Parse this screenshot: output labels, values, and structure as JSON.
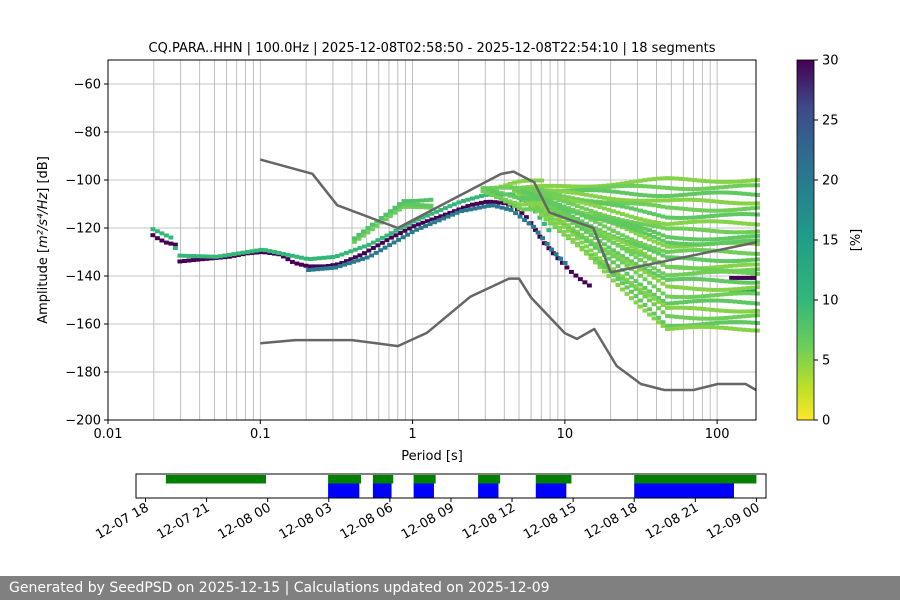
{
  "footer": {
    "generated": "Generated by SeedPSD on 2025-12-15",
    "separator": " | ",
    "updated": "Calculations updated on 2025-12-09"
  },
  "colors": {
    "green": "#008000",
    "blue": "#0000ff",
    "model": "#666666",
    "grid": "#b0b0b0",
    "footer_bg": "#808080"
  },
  "chart_data": [
    {
      "type": "heatmap",
      "title": "CQ.PARA..HHN | 100.0Hz | 2025-12-08T02:58:50 - 2025-12-08T22:54:10 | 18 segments",
      "xlabel": "Period [s]",
      "ylabel_prefix": "Amplitude [",
      "ylabel_math": "m²/s⁴/Hz",
      "ylabel_suffix": "] [dB]",
      "x_scale": "log",
      "xlim": [
        0.01,
        180
      ],
      "ylim": [
        -200,
        -50
      ],
      "x_ticks": [
        {
          "value": 0.01,
          "label": "0.01"
        },
        {
          "value": 0.1,
          "label": "0.1"
        },
        {
          "value": 1,
          "label": "1"
        },
        {
          "value": 10,
          "label": "10"
        },
        {
          "value": 100,
          "label": "100"
        }
      ],
      "y_ticks": [
        {
          "value": -60,
          "label": "−60"
        },
        {
          "value": -80,
          "label": "−80"
        },
        {
          "value": -100,
          "label": "−100"
        },
        {
          "value": -120,
          "label": "−120"
        },
        {
          "value": -140,
          "label": "−140"
        },
        {
          "value": -160,
          "label": "−160"
        },
        {
          "value": -180,
          "label": "−180"
        },
        {
          "value": -200,
          "label": "−200"
        }
      ],
      "grid": true,
      "colorbar": {
        "label": "[%]",
        "min": 0,
        "max": 30,
        "ticks": [
          {
            "value": 0,
            "label": "0"
          },
          {
            "value": 5,
            "label": "5"
          },
          {
            "value": 10,
            "label": "10"
          },
          {
            "value": 15,
            "label": "15"
          },
          {
            "value": 20,
            "label": "20"
          },
          {
            "value": 25,
            "label": "25"
          },
          {
            "value": 30,
            "label": "30"
          }
        ]
      },
      "high_noise_model": [
        [
          0.1,
          -91.5
        ],
        [
          0.22,
          -97.4
        ],
        [
          0.32,
          -110.5
        ],
        [
          0.8,
          -120
        ],
        [
          3.8,
          -97.5
        ],
        [
          4.6,
          -96.5
        ],
        [
          6.3,
          -101
        ],
        [
          7.9,
          -113.5
        ],
        [
          15.4,
          -120
        ],
        [
          20,
          -138.5
        ],
        [
          354.8,
          -126
        ]
      ],
      "low_noise_model": [
        [
          0.1,
          -168
        ],
        [
          0.17,
          -166.7
        ],
        [
          0.4,
          -166.7
        ],
        [
          0.8,
          -169.2
        ],
        [
          1.24,
          -163.7
        ],
        [
          2.4,
          -148.6
        ],
        [
          4.3,
          -141.1
        ],
        [
          5,
          -141.1
        ],
        [
          6,
          -149
        ],
        [
          10,
          -163.8
        ],
        [
          12,
          -166.2
        ],
        [
          15.6,
          -162.1
        ],
        [
          21.9,
          -177.5
        ],
        [
          31.6,
          -185
        ],
        [
          45,
          -187.5
        ],
        [
          70,
          -187.5
        ],
        [
          101,
          -185
        ],
        [
          154,
          -185
        ],
        [
          328,
          -187.5
        ]
      ],
      "psd_ridges": [
        {
          "percent": 30,
          "points": [
            [
              0.019,
              -123
            ],
            [
              0.02,
              -124
            ],
            [
              0.023,
              -126
            ],
            [
              0.027,
              -127
            ],
            [
              0.028,
              -134
            ],
            [
              0.04,
              -133
            ],
            [
              0.06,
              -132
            ],
            [
              0.08,
              -130.5
            ],
            [
              0.1,
              -130
            ],
            [
              0.13,
              -131
            ],
            [
              0.16,
              -134.5
            ],
            [
              0.2,
              -136
            ],
            [
              0.26,
              -136
            ],
            [
              0.32,
              -135
            ],
            [
              0.45,
              -131
            ],
            [
              0.7,
              -124
            ],
            [
              1.0,
              -119
            ],
            [
              1.5,
              -115
            ],
            [
              2.3,
              -110.5
            ],
            [
              3.0,
              -109
            ],
            [
              3.8,
              -109.5
            ],
            [
              4.5,
              -111
            ],
            [
              5.5,
              -116
            ],
            [
              7.0,
              -126
            ],
            [
              8.5,
              -132
            ],
            [
              10.5,
              -138
            ],
            [
              12,
              -141
            ],
            [
              14,
              -144
            ]
          ]
        },
        {
          "percent": 30,
          "points": [
            [
              120,
              -140.8
            ],
            [
              180,
              -140.8
            ]
          ]
        },
        {
          "percent": 20,
          "points": [
            [
              0.2,
              -137.5
            ],
            [
              0.3,
              -136.5
            ],
            [
              0.5,
              -132
            ],
            [
              1.0,
              -121
            ],
            [
              2.0,
              -113
            ],
            [
              3.2,
              -110.5
            ],
            [
              4.3,
              -112.5
            ],
            [
              6.0,
              -119.5
            ],
            [
              8.0,
              -129.5
            ],
            [
              10,
              -135.5
            ]
          ]
        },
        {
          "percent": 15,
          "points": [
            [
              120,
              -146
            ],
            [
              180,
              -146
            ]
          ]
        },
        {
          "percent": 10,
          "points": [
            [
              0.019,
              -120.5
            ],
            [
              0.025,
              -124
            ],
            [
              0.028,
              -131.5
            ],
            [
              0.05,
              -132
            ],
            [
              0.1,
              -129
            ],
            [
              0.2,
              -133
            ],
            [
              0.3,
              -132
            ],
            [
              0.5,
              -127
            ],
            [
              1.0,
              -117
            ],
            [
              2.0,
              -109
            ],
            [
              3.0,
              -106
            ],
            [
              4.5,
              -106
            ],
            [
              6.0,
              -112
            ],
            [
              8.0,
              -123
            ]
          ]
        }
      ],
      "psd_fans": [
        {
          "percent": 6,
          "from": [
            0.4,
            -125
          ],
          "to": [
            1.3,
            -113
          ],
          "levels": [
            -112,
            -110,
            -108
          ]
        },
        {
          "percent": 5,
          "from": [
            4.5,
            -104
          ],
          "to": [
            180,
            -104
          ],
          "levels": [
            -100,
            -103,
            -106,
            -109,
            -112,
            -115,
            -118,
            -121,
            -124,
            -127,
            -130,
            -133,
            -136,
            -139,
            -142,
            -145,
            -148,
            -151,
            -154,
            -157,
            -160,
            -162,
            -137,
            -126
          ]
        },
        {
          "percent": 5,
          "from": [
            2.8,
            -104
          ],
          "to": [
            7,
            -104
          ],
          "levels": [
            -101,
            -104,
            -107,
            -110,
            -113
          ]
        }
      ]
    },
    {
      "type": "timeline",
      "time_start": "2025-12-07 18:00",
      "time_end": "2025-12-09 01:00",
      "x_ticks": [
        {
          "value": "2025-12-07 18:00",
          "label": "12-07 18"
        },
        {
          "value": "2025-12-07 21:00",
          "label": "12-07 21"
        },
        {
          "value": "2025-12-08 00:00",
          "label": "12-08 00"
        },
        {
          "value": "2025-12-08 03:00",
          "label": "12-08 03"
        },
        {
          "value": "2025-12-08 06:00",
          "label": "12-08 06"
        },
        {
          "value": "2025-12-08 09:00",
          "label": "12-08 09"
        },
        {
          "value": "2025-12-08 12:00",
          "label": "12-08 12"
        },
        {
          "value": "2025-12-08 15:00",
          "label": "12-08 15"
        },
        {
          "value": "2025-12-08 18:00",
          "label": "12-08 18"
        },
        {
          "value": "2025-12-08 21:00",
          "label": "12-08 21"
        },
        {
          "value": "2025-12-09 00:00",
          "label": "12-09 00"
        }
      ],
      "green_segments": [
        [
          "2025-12-07 19:00",
          "2025-12-07 23:55"
        ],
        [
          "2025-12-08 02:58",
          "2025-12-08 04:35"
        ],
        [
          "2025-12-08 05:10",
          "2025-12-08 06:10"
        ],
        [
          "2025-12-08 07:10",
          "2025-12-08 08:15"
        ],
        [
          "2025-12-08 10:20",
          "2025-12-08 11:25"
        ],
        [
          "2025-12-08 13:10",
          "2025-12-08 14:55"
        ],
        [
          "2025-12-08 18:00",
          "2025-12-09 00:00"
        ]
      ],
      "blue_segments": [
        [
          "2025-12-08 02:58",
          "2025-12-08 04:30"
        ],
        [
          "2025-12-08 05:10",
          "2025-12-08 06:05"
        ],
        [
          "2025-12-08 07:10",
          "2025-12-08 08:10"
        ],
        [
          "2025-12-08 10:20",
          "2025-12-08 11:20"
        ],
        [
          "2025-12-08 13:10",
          "2025-12-08 14:40"
        ],
        [
          "2025-12-08 18:00",
          "2025-12-08 22:54"
        ]
      ]
    }
  ]
}
